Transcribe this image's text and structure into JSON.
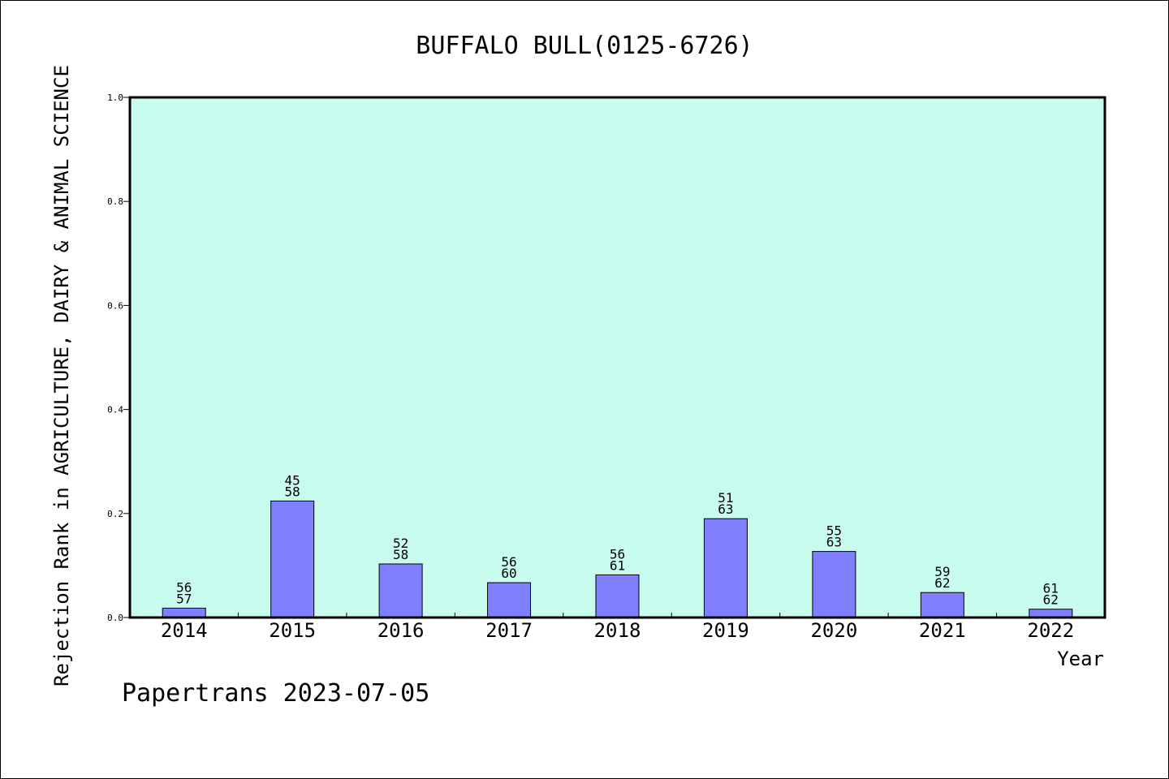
{
  "chart_data": {
    "type": "bar",
    "title": "BUFFALO BULL(0125-6726)",
    "ylabel": "Rejection Rank in AGRICULTURE, DAIRY & ANIMAL SCIENCE",
    "xlabel": "Year",
    "ylim": [
      0,
      1.0
    ],
    "yticks": [
      "0.0",
      "0.2",
      "0.4",
      "0.6",
      "0.8",
      "1.0"
    ],
    "categories": [
      "2014",
      "2015",
      "2016",
      "2017",
      "2018",
      "2019",
      "2020",
      "2021",
      "2022"
    ],
    "values": [
      0.018,
      0.224,
      0.103,
      0.067,
      0.082,
      0.19,
      0.127,
      0.048,
      0.016
    ],
    "labels_top": [
      "56",
      "45",
      "52",
      "56",
      "56",
      "51",
      "55",
      "59",
      "61"
    ],
    "labels_bottom": [
      "57",
      "58",
      "58",
      "60",
      "61",
      "63",
      "63",
      "62",
      "62"
    ],
    "grid": false,
    "colors": {
      "plot_background": "#c8fcee",
      "bar_fill": "#8080ff",
      "bar_stroke": "#000000"
    }
  },
  "footer": "Papertrans 2023-07-05"
}
